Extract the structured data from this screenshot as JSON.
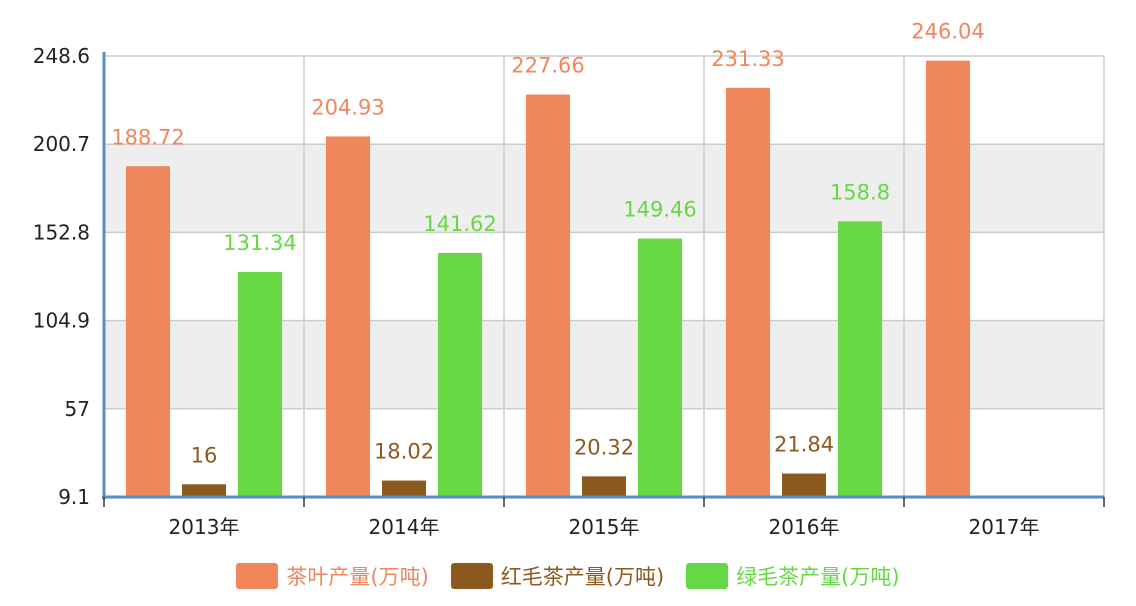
{
  "chart_data": {
    "type": "bar",
    "categories": [
      "2013年",
      "2014年",
      "2015年",
      "2016年",
      "2017年"
    ],
    "series": [
      {
        "name": "茶叶产量(万吨)",
        "color": "#F0865C",
        "values": [
          188.72,
          204.93,
          227.66,
          231.33,
          246.04
        ]
      },
      {
        "name": "红毛茶产量(万吨)",
        "color": "#8B5A1E",
        "values": [
          16,
          18.02,
          20.32,
          21.84,
          null
        ]
      },
      {
        "name": "绿毛茶产量(万吨)",
        "color": "#66D845",
        "values": [
          131.34,
          141.62,
          149.46,
          158.8,
          null
        ]
      }
    ],
    "y_ticks": [
      "9.1",
      "57",
      "104.9",
      "152.8",
      "200.7",
      "248.6"
    ],
    "ylim": [
      9.1,
      248.6
    ],
    "grid": true,
    "legend_position": "bottom",
    "title": "",
    "xlabel": "",
    "ylabel": ""
  }
}
